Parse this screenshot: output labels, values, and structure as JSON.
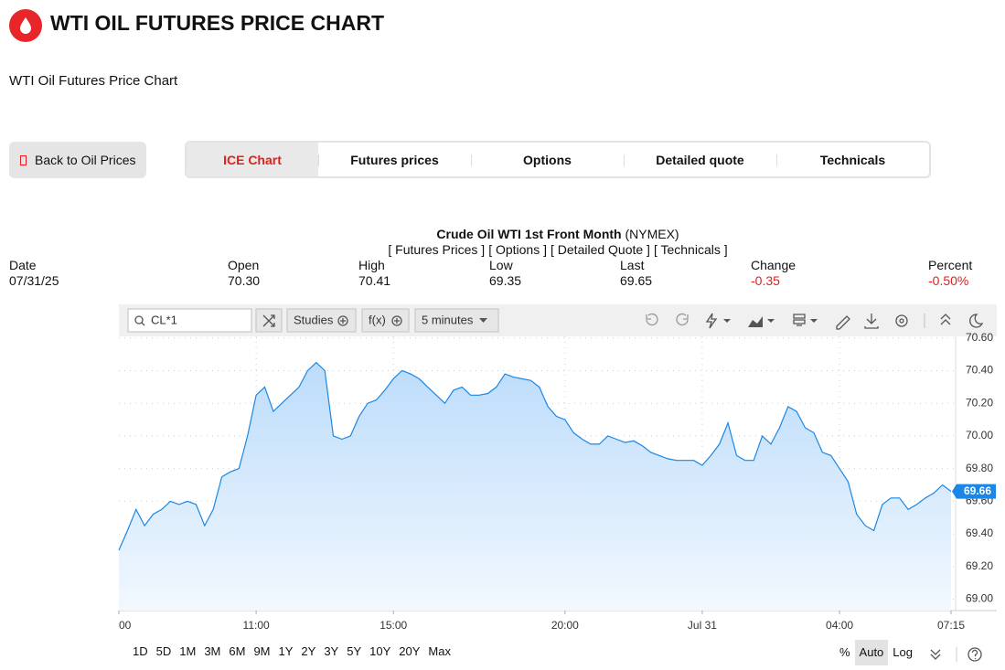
{
  "header": {
    "title": "WTI OIL FUTURES PRICE CHART",
    "subtitle": "WTI Oil Futures Price Chart"
  },
  "nav": {
    "back": "Back to Oil Prices",
    "tabs": [
      "ICE Chart",
      "Futures prices",
      "Options",
      "Detailed quote",
      "Technicals"
    ]
  },
  "quote": {
    "name": "Crude Oil WTI 1st Front Month",
    "exchange": "(NYMEX)",
    "links": [
      "[ Futures Prices ]",
      "[ Options ]",
      "[ Detailed Quote ]",
      "[ Technicals ]"
    ],
    "fields": [
      {
        "label": "Date",
        "value": "07/31/25"
      },
      {
        "label": "Open",
        "value": "70.30"
      },
      {
        "label": "High",
        "value": "70.41"
      },
      {
        "label": "Low",
        "value": "69.35"
      },
      {
        "label": "Last",
        "value": "69.65"
      },
      {
        "label": "Change",
        "value": "-0.35"
      },
      {
        "label": "Percent",
        "value": "-0.50%"
      }
    ]
  },
  "toolbar": {
    "symbol": "CL*1",
    "studies": "Studies",
    "fx": "f(x)",
    "interval": "5 minutes"
  },
  "chart_data": {
    "type": "line",
    "color": "#1a87e6",
    "values": [
      69.3,
      69.42,
      69.55,
      69.45,
      69.52,
      69.55,
      69.6,
      69.58,
      69.6,
      69.58,
      69.45,
      69.55,
      69.75,
      69.78,
      69.8,
      70.0,
      70.25,
      70.3,
      70.15,
      70.2,
      70.25,
      70.3,
      70.4,
      70.45,
      70.4,
      70.0,
      69.98,
      70.0,
      70.12,
      70.2,
      70.22,
      70.28,
      70.35,
      70.4,
      70.38,
      70.35,
      70.3,
      70.25,
      70.2,
      70.28,
      70.3,
      70.25,
      70.25,
      70.26,
      70.3,
      70.38,
      70.36,
      70.35,
      70.34,
      70.3,
      70.18,
      70.12,
      70.1,
      70.02,
      69.98,
      69.95,
      69.95,
      70.0,
      69.98,
      69.96,
      69.97,
      69.94,
      69.9,
      69.88,
      69.86,
      69.85,
      69.85,
      69.85,
      69.82,
      69.88,
      69.95,
      70.08,
      69.88,
      69.85,
      69.85,
      70.0,
      69.95,
      70.05,
      70.18,
      70.15,
      70.05,
      70.02,
      69.9,
      69.88,
      69.8,
      69.72,
      69.52,
      69.45,
      69.42,
      69.58,
      69.62,
      69.62,
      69.55,
      69.58,
      69.62,
      69.65,
      69.7,
      69.66
    ],
    "last_value_label": "69.66",
    "xlim": [
      0,
      97
    ],
    "xticks": [
      {
        "value": 0,
        "label": "00"
      },
      {
        "value": 16,
        "label": "11:00"
      },
      {
        "value": 32,
        "label": "15:00"
      },
      {
        "value": 52,
        "label": "20:00"
      },
      {
        "value": 68,
        "label": "Jul 31"
      },
      {
        "value": 84,
        "label": "04:00"
      },
      {
        "value": 97,
        "label": "07:15"
      }
    ],
    "ylim": [
      68.93,
      70.61
    ],
    "yticks": [
      {
        "value": 69,
        "label": "69.00"
      },
      {
        "value": 69.2,
        "label": "69.20"
      },
      {
        "value": 69.4,
        "label": "69.40"
      },
      {
        "value": 69.6,
        "label": "69.60"
      },
      {
        "value": 69.8,
        "label": "69.80"
      },
      {
        "value": 70,
        "label": "70.00"
      },
      {
        "value": 70.2,
        "label": "70.20"
      },
      {
        "value": 70.4,
        "label": "70.40"
      },
      {
        "value": 70.6,
        "label": "70.60"
      }
    ],
    "grid": true
  },
  "footer": {
    "periods": [
      "1D",
      "5D",
      "1M",
      "3M",
      "6M",
      "9M",
      "1Y",
      "2Y",
      "3Y",
      "5Y",
      "10Y",
      "20Y",
      "Max"
    ],
    "scale_options": [
      "%",
      "Auto",
      "Log"
    ]
  }
}
